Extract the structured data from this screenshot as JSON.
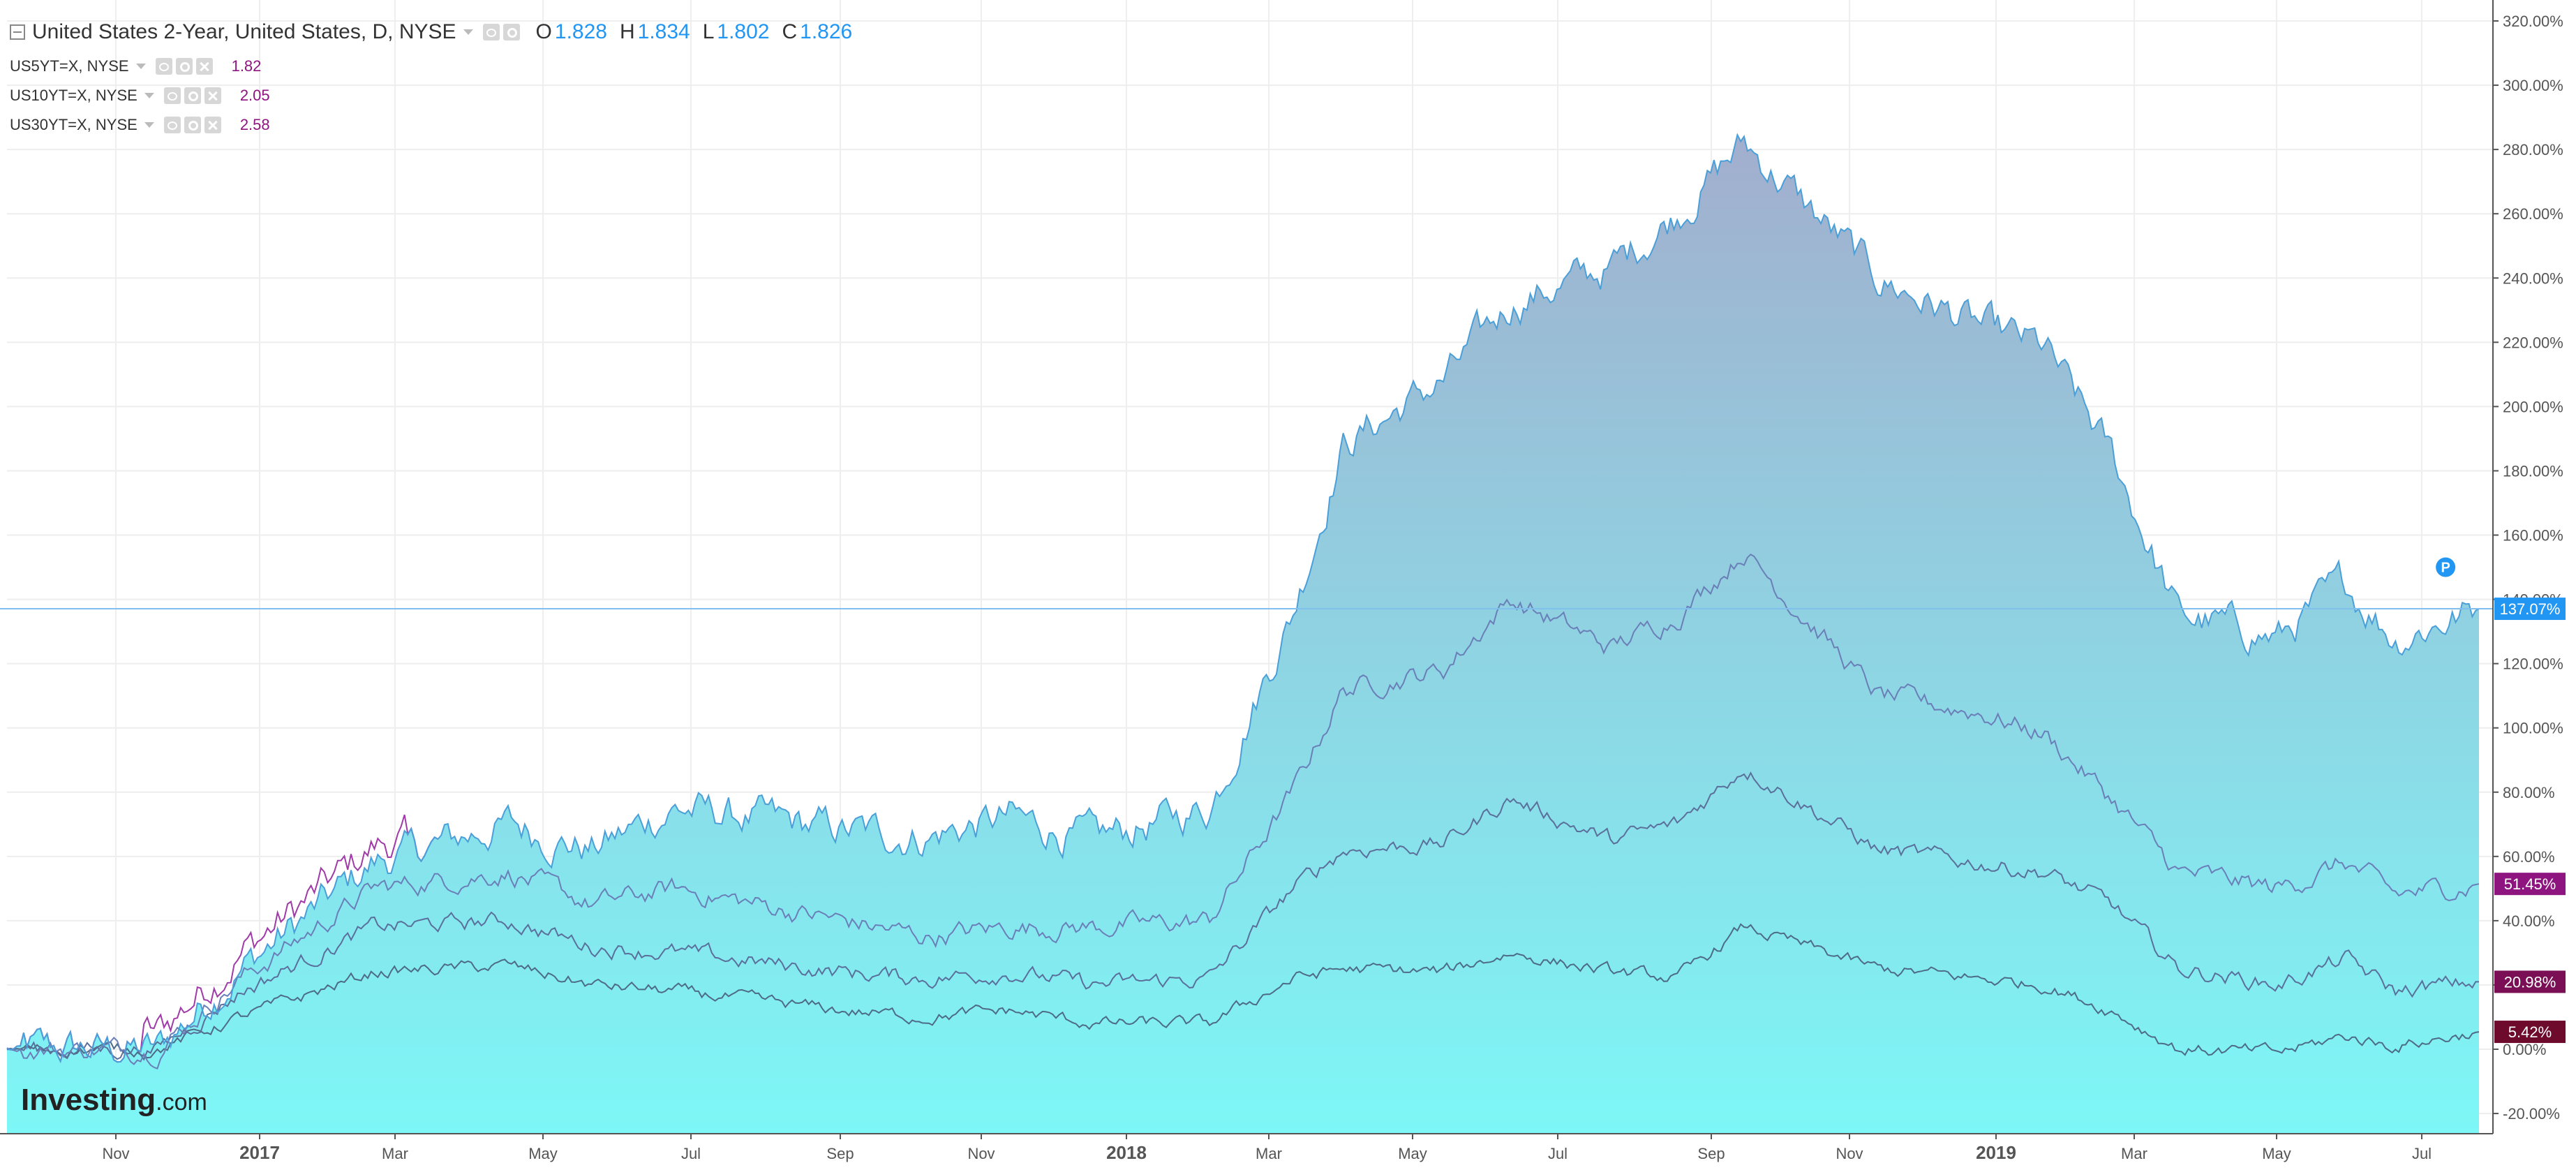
{
  "legend": {
    "main_title": "United States 2-Year, United States, D, NYSE",
    "ohlc": [
      {
        "key": "O",
        "value": "1.828"
      },
      {
        "key": "H",
        "value": "1.834"
      },
      {
        "key": "L",
        "value": "1.802"
      },
      {
        "key": "C",
        "value": "1.826"
      }
    ],
    "comparisons": [
      {
        "symbol": "US5YT=X, NYSE",
        "value": "1.82"
      },
      {
        "symbol": "US10YT=X, NYSE",
        "value": "2.05"
      },
      {
        "symbol": "US30YT=X, NYSE",
        "value": "2.58"
      }
    ]
  },
  "colors": {
    "ohlc_value": "#2196f3",
    "area_top": "#a2aecd",
    "area_bottom": "#7df7f7",
    "main_line": "#4a9fd8",
    "us5_line": "#6a7fb8",
    "us10_line": "#5a6f9a",
    "us30_line": "#4e6b86",
    "early_line": "#a03aa8",
    "badge_main": "#2196f3",
    "badge_us5": "#8e1480",
    "badge_us10": "#7a0f56",
    "badge_us30": "#6e0b2c",
    "comparison_value": "#8e1480"
  },
  "watermark": {
    "brand": "Investing",
    "suffix": ".com"
  },
  "marker": {
    "label": "P"
  },
  "chart_data": {
    "type": "area",
    "title": "United States 2-Year, United States, D, NYSE",
    "xlabel": "",
    "ylabel": "",
    "ylim": [
      -25,
      322
    ],
    "grid": true,
    "x_ticks": [
      "Nov",
      "2017",
      "Mar",
      "May",
      "Jul",
      "Sep",
      "Nov",
      "2018",
      "Mar",
      "May",
      "Jul",
      "Sep",
      "Nov",
      "2019",
      "Mar",
      "May",
      "Jul"
    ],
    "y_ticks": [
      "-20.00%",
      "0.00%",
      "20.00%",
      "40.00%",
      "60.00%",
      "80.00%",
      "100.00%",
      "120.00%",
      "140.00%",
      "160.00%",
      "180.00%",
      "200.00%",
      "220.00%",
      "240.00%",
      "260.00%",
      "280.00%",
      "300.00%",
      "320.00%"
    ],
    "x_anchor_index": [
      0,
      45,
      70,
      110,
      150,
      175,
      200,
      250,
      275,
      300,
      325,
      360,
      385,
      400,
      430,
      450,
      480,
      500,
      520,
      560,
      590,
      610,
      630,
      650,
      680,
      700,
      715,
      740
    ],
    "series": [
      {
        "name": "United States 2-Year, United States, D, NYSE",
        "values": [
          0,
          0,
          25,
          58,
          70,
          62,
          75,
          68,
          66,
          72,
          65,
          75,
          136,
          188,
          208,
          232,
          243,
          260,
          282,
          240,
          225,
          218,
          185,
          135,
          128,
          145,
          128,
          137.07
        ],
        "last_label": "137.07%"
      },
      {
        "name": "US5YT=X, NYSE",
        "values": [
          0,
          0,
          22,
          50,
          55,
          45,
          50,
          40,
          35,
          38,
          38,
          40,
          80,
          112,
          118,
          140,
          125,
          135,
          155,
          110,
          105,
          98,
          78,
          55,
          50,
          58,
          48,
          51.45
        ],
        "last_label": "51.45%"
      },
      {
        "name": "US10YT=X, NYSE",
        "values": [
          0,
          0,
          18,
          38,
          40,
          32,
          30,
          24,
          22,
          24,
          20,
          22,
          50,
          62,
          64,
          78,
          65,
          70,
          88,
          62,
          58,
          55,
          45,
          25,
          20,
          28,
          18,
          20.98
        ],
        "last_label": "20.98%"
      },
      {
        "name": "US30YT=X, NYSE",
        "values": [
          0,
          0,
          10,
          24,
          26,
          20,
          18,
          12,
          10,
          12,
          8,
          8,
          22,
          25,
          24,
          30,
          24,
          22,
          38,
          25,
          22,
          20,
          12,
          0,
          -1,
          4,
          1,
          5.42
        ],
        "last_label": "5.42%"
      }
    ]
  }
}
